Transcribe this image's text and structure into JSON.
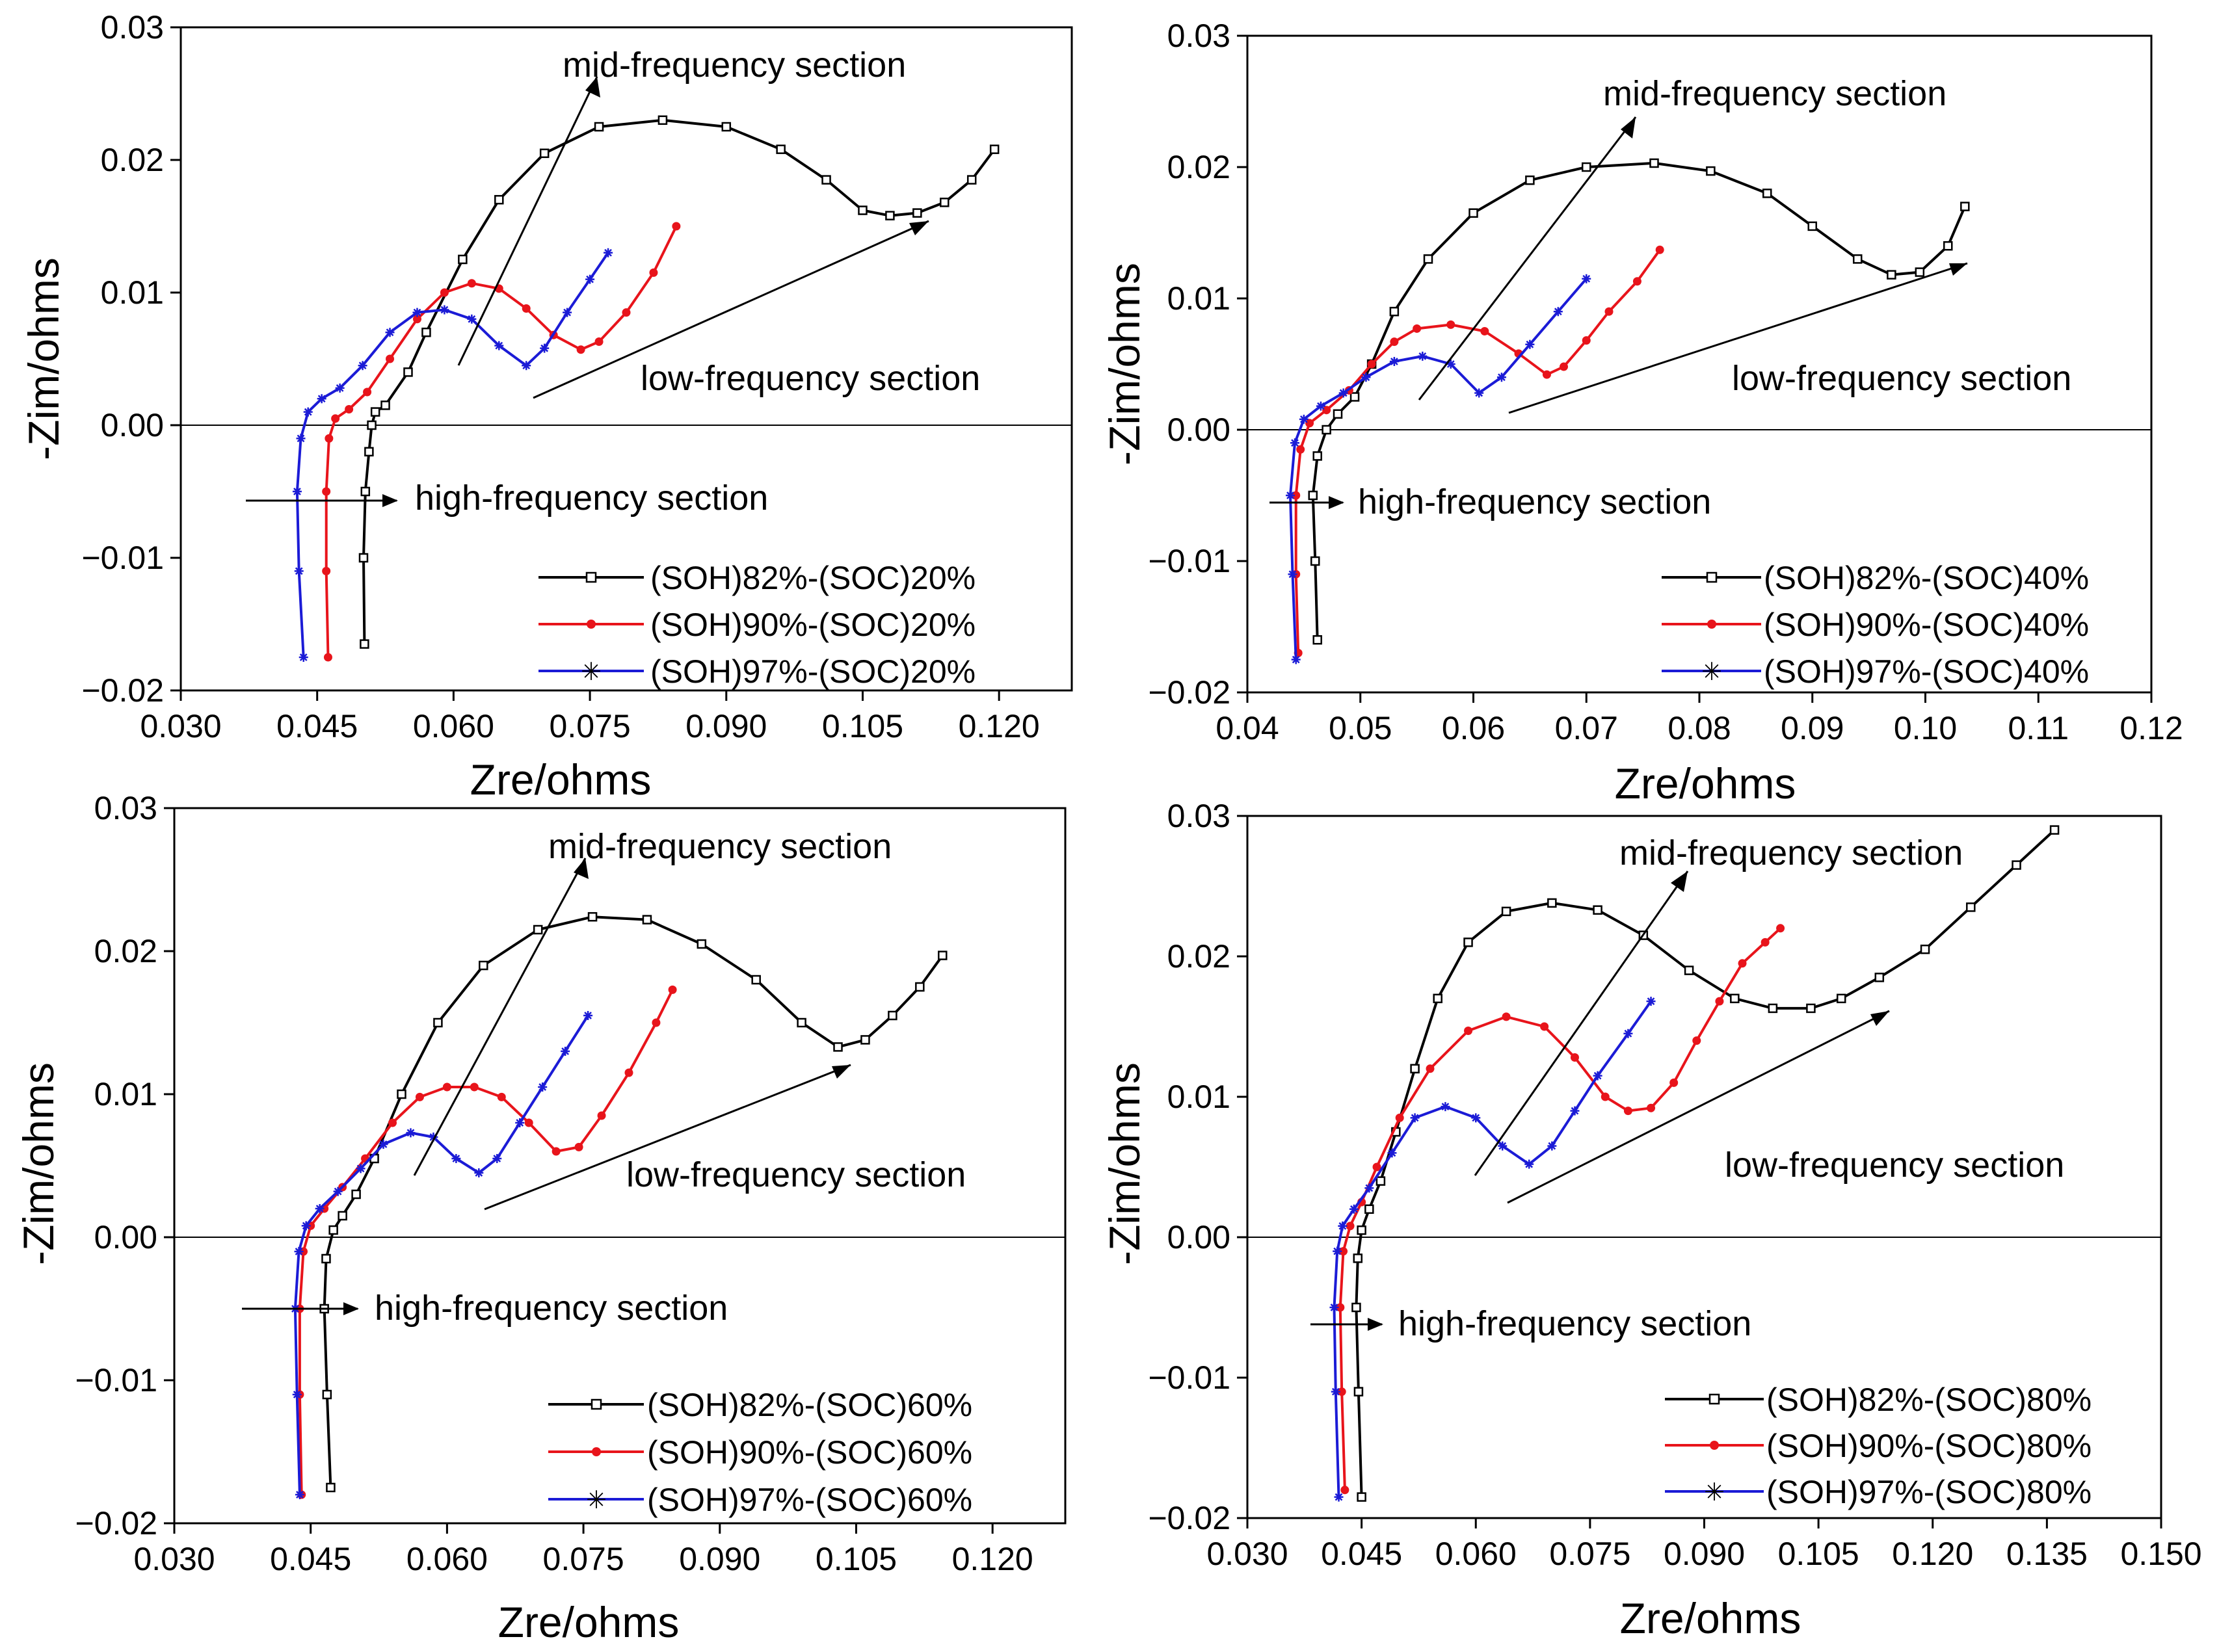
{
  "colors": {
    "soh82": "#000000",
    "soh90": "#e8141b",
    "soh97": "#1b1bd6",
    "axis": "#000000"
  },
  "chart_data": [
    {
      "type": "line",
      "xlabel": "Zre/ohms",
      "ylabel": "-Zim/ohms",
      "xlim": [
        0.03,
        0.128
      ],
      "ylim": [
        -0.02,
        0.03
      ],
      "xticks": [
        "0.030",
        "0.045",
        "0.060",
        "0.075",
        "0.090",
        "0.105",
        "0.120"
      ],
      "xtick_values": [
        0.03,
        0.045,
        0.06,
        0.075,
        0.09,
        0.105,
        0.12
      ],
      "yticks": [
        "−0.02",
        "−0.01",
        "0.00",
        "0.01",
        "0.02",
        "0.03"
      ],
      "ytick_values": [
        -0.02,
        -0.01,
        0.0,
        0.01,
        0.02,
        0.03
      ],
      "annotations": {
        "mid": "mid-frequency section",
        "low": "low-frequency section",
        "high": "high-frequency section"
      },
      "series": [
        {
          "name": "(SOH)82%-(SOC)20%",
          "color": "#000000",
          "marker": "square",
          "x": [
            0.0502,
            0.0501,
            0.0503,
            0.0507,
            0.051,
            0.0514,
            0.0525,
            0.055,
            0.057,
            0.061,
            0.065,
            0.07,
            0.076,
            0.083,
            0.09,
            0.096,
            0.101,
            0.105,
            0.108,
            0.111,
            0.114,
            0.117,
            0.1195
          ],
          "y": [
            -0.0165,
            -0.01,
            -0.005,
            -0.002,
            0.0,
            0.001,
            0.0015,
            0.004,
            0.007,
            0.0125,
            0.017,
            0.0205,
            0.0225,
            0.023,
            0.0225,
            0.0208,
            0.0185,
            0.0162,
            0.0158,
            0.016,
            0.0168,
            0.0185,
            0.0208
          ]
        },
        {
          "name": "(SOH)90%-(SOC)20%",
          "color": "#e8141b",
          "marker": "dot",
          "x": [
            0.0462,
            0.046,
            0.046,
            0.0463,
            0.047,
            0.0485,
            0.0505,
            0.053,
            0.056,
            0.059,
            0.062,
            0.065,
            0.068,
            0.071,
            0.074,
            0.076,
            0.079,
            0.082,
            0.0845
          ],
          "y": [
            -0.0175,
            -0.011,
            -0.005,
            -0.001,
            0.0005,
            0.0012,
            0.0025,
            0.005,
            0.008,
            0.01,
            0.0107,
            0.0103,
            0.0088,
            0.0068,
            0.0057,
            0.0063,
            0.0085,
            0.0115,
            0.015
          ]
        },
        {
          "name": "(SOH)97%-(SOC)20%",
          "color": "#1b1bd6",
          "marker": "star",
          "x": [
            0.0435,
            0.043,
            0.0428,
            0.0432,
            0.044,
            0.0455,
            0.0475,
            0.05,
            0.053,
            0.056,
            0.059,
            0.062,
            0.065,
            0.068,
            0.07,
            0.0725,
            0.075,
            0.077
          ],
          "y": [
            -0.0175,
            -0.011,
            -0.005,
            -0.001,
            0.001,
            0.002,
            0.0028,
            0.0045,
            0.007,
            0.0085,
            0.0087,
            0.008,
            0.006,
            0.0045,
            0.0058,
            0.0085,
            0.011,
            0.013
          ]
        }
      ]
    },
    {
      "type": "line",
      "xlabel": "Zre/ohms",
      "ylabel": "-Zim/ohms",
      "xlim": [
        0.04,
        0.12
      ],
      "ylim": [
        -0.02,
        0.03
      ],
      "xticks": [
        "0.04",
        "0.05",
        "0.06",
        "0.07",
        "0.08",
        "0.09",
        "0.10",
        "0.11",
        "0.12"
      ],
      "xtick_values": [
        0.04,
        0.05,
        0.06,
        0.07,
        0.08,
        0.09,
        0.1,
        0.11,
        0.12
      ],
      "yticks": [
        "−0.02",
        "−0.01",
        "0.00",
        "0.01",
        "0.02",
        "0.03"
      ],
      "ytick_values": [
        -0.02,
        -0.01,
        0.0,
        0.01,
        0.02,
        0.03
      ],
      "annotations": {
        "mid": "mid-frequency section",
        "low": "low-frequency section",
        "high": "high-frequency section"
      },
      "series": [
        {
          "name": "(SOH)82%-(SOC)40%",
          "color": "#000000",
          "marker": "square",
          "x": [
            0.0462,
            0.046,
            0.0458,
            0.0462,
            0.047,
            0.048,
            0.0495,
            0.051,
            0.053,
            0.056,
            0.06,
            0.065,
            0.07,
            0.076,
            0.081,
            0.086,
            0.09,
            0.094,
            0.097,
            0.0995,
            0.102,
            0.1035
          ],
          "y": [
            -0.016,
            -0.01,
            -0.005,
            -0.002,
            0.0,
            0.0012,
            0.0025,
            0.005,
            0.009,
            0.013,
            0.0165,
            0.019,
            0.02,
            0.0203,
            0.0197,
            0.018,
            0.0155,
            0.013,
            0.0118,
            0.012,
            0.014,
            0.017
          ]
        },
        {
          "name": "(SOH)90%-(SOC)40%",
          "color": "#e8141b",
          "marker": "dot",
          "x": [
            0.0445,
            0.0443,
            0.0443,
            0.0447,
            0.0455,
            0.047,
            0.049,
            0.051,
            0.053,
            0.055,
            0.058,
            0.061,
            0.064,
            0.0665,
            0.068,
            0.07,
            0.072,
            0.0745,
            0.0765
          ],
          "y": [
            -0.017,
            -0.011,
            -0.005,
            -0.0015,
            0.0005,
            0.0015,
            0.003,
            0.005,
            0.0067,
            0.0077,
            0.008,
            0.0075,
            0.0058,
            0.0042,
            0.0048,
            0.0068,
            0.009,
            0.0113,
            0.0137
          ]
        },
        {
          "name": "(SOH)97%-(SOC)40%",
          "color": "#1b1bd6",
          "marker": "star",
          "x": [
            0.0443,
            0.044,
            0.0438,
            0.0442,
            0.045,
            0.0465,
            0.0485,
            0.0505,
            0.053,
            0.0555,
            0.058,
            0.0605,
            0.0625,
            0.065,
            0.0675,
            0.07
          ],
          "y": [
            -0.0175,
            -0.011,
            -0.005,
            -0.001,
            0.0008,
            0.0018,
            0.0028,
            0.004,
            0.0052,
            0.0056,
            0.005,
            0.0028,
            0.004,
            0.0065,
            0.009,
            0.0115
          ]
        }
      ]
    },
    {
      "type": "line",
      "xlabel": "Zre/ohms",
      "ylabel": "-Zim/ohms",
      "xlim": [
        0.03,
        0.128
      ],
      "ylim": [
        -0.02,
        0.03
      ],
      "xticks": [
        "0.030",
        "0.045",
        "0.060",
        "0.075",
        "0.090",
        "0.105",
        "0.120"
      ],
      "xtick_values": [
        0.03,
        0.045,
        0.06,
        0.075,
        0.09,
        0.105,
        0.12
      ],
      "yticks": [
        "−0.02",
        "−0.01",
        "0.00",
        "0.01",
        "0.02",
        "0.03"
      ],
      "ytick_values": [
        -0.02,
        -0.01,
        0.0,
        0.01,
        0.02,
        0.03
      ],
      "annotations": {
        "mid": "mid-frequency section",
        "low": "low-frequency section",
        "high": "high-frequency section"
      },
      "series": [
        {
          "name": "(SOH)82%-(SOC)60%",
          "color": "#000000",
          "marker": "square",
          "x": [
            0.0472,
            0.0468,
            0.0465,
            0.0467,
            0.0475,
            0.0485,
            0.05,
            0.052,
            0.055,
            0.059,
            0.064,
            0.07,
            0.076,
            0.082,
            0.088,
            0.094,
            0.099,
            0.103,
            0.106,
            0.109,
            0.112,
            0.1145
          ],
          "y": [
            -0.0175,
            -0.011,
            -0.005,
            -0.0015,
            0.0005,
            0.0015,
            0.003,
            0.0055,
            0.01,
            0.015,
            0.019,
            0.0215,
            0.0224,
            0.0222,
            0.0205,
            0.018,
            0.015,
            0.0133,
            0.0138,
            0.0155,
            0.0175,
            0.0197
          ]
        },
        {
          "name": "(SOH)90%-(SOC)60%",
          "color": "#e8141b",
          "marker": "dot",
          "x": [
            0.044,
            0.0438,
            0.0438,
            0.0442,
            0.045,
            0.0465,
            0.0485,
            0.051,
            0.054,
            0.057,
            0.06,
            0.063,
            0.066,
            0.069,
            0.072,
            0.0745,
            0.077,
            0.08,
            0.083,
            0.0848
          ],
          "y": [
            -0.018,
            -0.011,
            -0.005,
            -0.001,
            0.0008,
            0.002,
            0.0035,
            0.0055,
            0.008,
            0.0098,
            0.0105,
            0.0105,
            0.0098,
            0.008,
            0.006,
            0.0063,
            0.0085,
            0.0115,
            0.015,
            0.0173
          ]
        },
        {
          "name": "(SOH)97%-(SOC)60%",
          "color": "#1b1bd6",
          "marker": "star",
          "x": [
            0.0438,
            0.0435,
            0.0433,
            0.0437,
            0.0445,
            0.046,
            0.048,
            0.0505,
            0.053,
            0.056,
            0.0585,
            0.061,
            0.0635,
            0.0655,
            0.068,
            0.0705,
            0.073,
            0.0755
          ],
          "y": [
            -0.018,
            -0.011,
            -0.005,
            -0.001,
            0.0008,
            0.002,
            0.0032,
            0.0048,
            0.0065,
            0.0073,
            0.007,
            0.0055,
            0.0045,
            0.0055,
            0.008,
            0.0105,
            0.013,
            0.0155
          ]
        }
      ]
    },
    {
      "type": "line",
      "xlabel": "Zre/ohms",
      "ylabel": "-Zim/ohms",
      "xlim": [
        0.03,
        0.15
      ],
      "ylim": [
        -0.02,
        0.03
      ],
      "xticks": [
        "0.030",
        "0.045",
        "0.060",
        "0.075",
        "0.090",
        "0.105",
        "0.120",
        "0.135",
        "0.150"
      ],
      "xtick_values": [
        0.03,
        0.045,
        0.06,
        0.075,
        0.09,
        0.105,
        0.12,
        0.135,
        0.15
      ],
      "yticks": [
        "−0.02",
        "−0.01",
        "0.00",
        "0.01",
        "0.02",
        "0.03"
      ],
      "ytick_values": [
        -0.02,
        -0.01,
        0.0,
        0.01,
        0.02,
        0.03
      ],
      "annotations": {
        "mid": "mid-frequency section",
        "low": "low-frequency section",
        "high": "high-frequency section"
      },
      "series": [
        {
          "name": "(SOH)82%-(SOC)80%",
          "color": "#000000",
          "marker": "square",
          "x": [
            0.045,
            0.0446,
            0.0443,
            0.0445,
            0.045,
            0.046,
            0.0475,
            0.0495,
            0.052,
            0.055,
            0.059,
            0.064,
            0.07,
            0.076,
            0.082,
            0.088,
            0.094,
            0.099,
            0.104,
            0.108,
            0.113,
            0.119,
            0.125,
            0.131,
            0.136
          ],
          "y": [
            -0.0185,
            -0.011,
            -0.005,
            -0.0015,
            0.0005,
            0.002,
            0.004,
            0.0075,
            0.012,
            0.017,
            0.021,
            0.0232,
            0.0238,
            0.0233,
            0.0215,
            0.019,
            0.017,
            0.0163,
            0.0163,
            0.017,
            0.0185,
            0.0205,
            0.0235,
            0.0265,
            0.029
          ]
        },
        {
          "name": "(SOH)90%-(SOC)80%",
          "color": "#e8141b",
          "marker": "dot",
          "x": [
            0.0428,
            0.0424,
            0.0422,
            0.0426,
            0.0435,
            0.045,
            0.047,
            0.05,
            0.054,
            0.059,
            0.064,
            0.069,
            0.073,
            0.077,
            0.08,
            0.083,
            0.086,
            0.089,
            0.092,
            0.095,
            0.098,
            0.1
          ],
          "y": [
            -0.018,
            -0.011,
            -0.005,
            -0.001,
            0.0008,
            0.0025,
            0.005,
            0.0085,
            0.012,
            0.0147,
            0.0157,
            0.015,
            0.0128,
            0.01,
            0.009,
            0.0092,
            0.011,
            0.014,
            0.0168,
            0.0195,
            0.021,
            0.022
          ]
        },
        {
          "name": "(SOH)97%-(SOC)80%",
          "color": "#1b1bd6",
          "marker": "star",
          "x": [
            0.042,
            0.0416,
            0.0414,
            0.0418,
            0.0425,
            0.044,
            0.046,
            0.049,
            0.052,
            0.056,
            0.06,
            0.0635,
            0.067,
            0.07,
            0.073,
            0.076,
            0.08,
            0.083
          ],
          "y": [
            -0.0185,
            -0.011,
            -0.005,
            -0.001,
            0.0008,
            0.002,
            0.0035,
            0.006,
            0.0085,
            0.0093,
            0.0085,
            0.0065,
            0.0052,
            0.0065,
            0.009,
            0.0115,
            0.0145,
            0.0168
          ]
        }
      ]
    }
  ]
}
